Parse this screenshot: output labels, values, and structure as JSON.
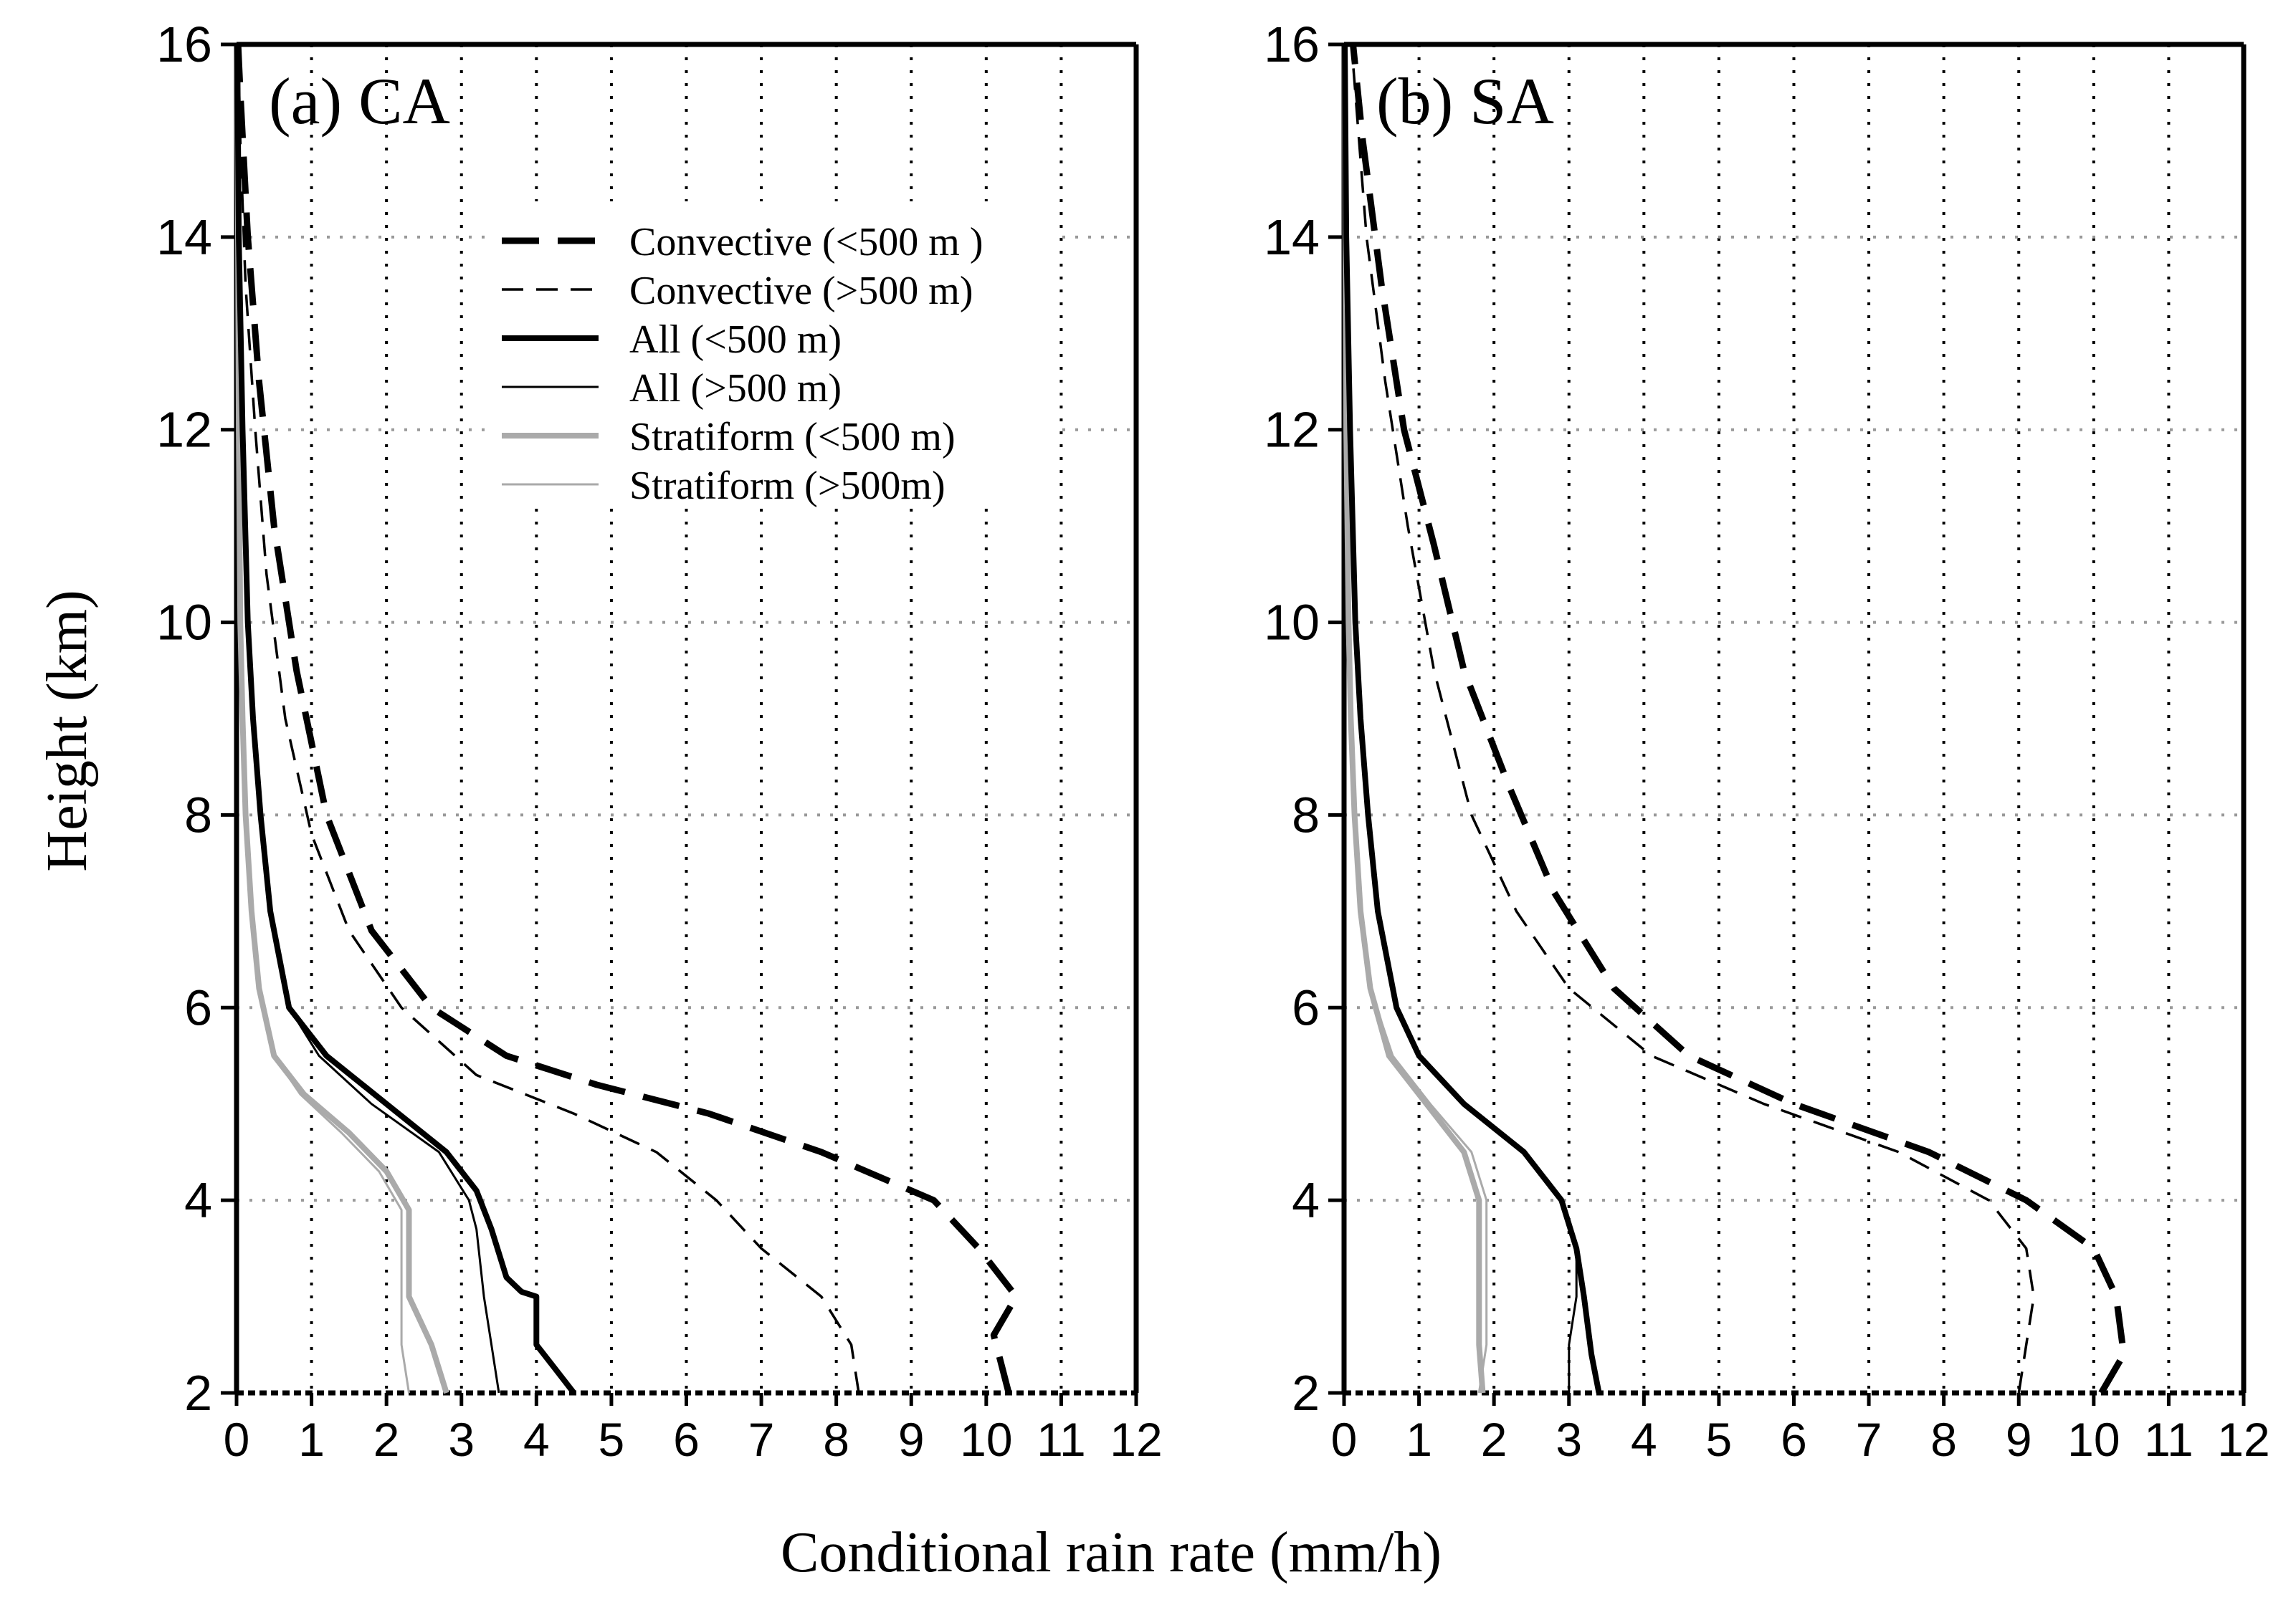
{
  "figure": {
    "shared_xlabel": "Conditional rain rate (mm/h)",
    "shared_ylabel": "Height (km)"
  },
  "chart_data": [
    {
      "type": "line",
      "title": "(a) CA",
      "xlabel": "Conditional rain rate (mm/h)",
      "ylabel": "Height (km)",
      "xlim": [
        0,
        12
      ],
      "ylim": [
        2,
        16
      ],
      "xticks": [
        0,
        1,
        2,
        3,
        4,
        5,
        6,
        7,
        8,
        9,
        10,
        11,
        12
      ],
      "yticks": [
        2,
        4,
        6,
        8,
        10,
        12,
        14,
        16
      ],
      "grid": true,
      "legend_position": "upper-center",
      "series": [
        {
          "name": "Convective (<500 m )",
          "style": "thick-dash",
          "color": "#000000",
          "points": [
            [
              10.3,
              2.0
            ],
            [
              10.2,
              2.3
            ],
            [
              10.1,
              2.6
            ],
            [
              10.4,
              3.0
            ],
            [
              10.2,
              3.2
            ],
            [
              9.9,
              3.5
            ],
            [
              9.3,
              4.0
            ],
            [
              7.8,
              4.5
            ],
            [
              6.3,
              4.9
            ],
            [
              4.8,
              5.2
            ],
            [
              3.6,
              5.5
            ],
            [
              2.6,
              6.0
            ],
            [
              1.8,
              6.8
            ],
            [
              1.2,
              8.0
            ],
            [
              0.8,
              9.5
            ],
            [
              0.5,
              11.0
            ],
            [
              0.3,
              12.5
            ],
            [
              0.15,
              14.0
            ],
            [
              0.05,
              15.5
            ],
            [
              0.02,
              16.0
            ]
          ]
        },
        {
          "name": "Convective (>500 m)",
          "style": "thin-dash",
          "color": "#000000",
          "points": [
            [
              8.3,
              2.0
            ],
            [
              8.2,
              2.5
            ],
            [
              7.8,
              3.0
            ],
            [
              7.0,
              3.5
            ],
            [
              6.4,
              4.0
            ],
            [
              5.6,
              4.5
            ],
            [
              4.5,
              4.9
            ],
            [
              3.2,
              5.3
            ],
            [
              2.2,
              6.0
            ],
            [
              1.5,
              6.8
            ],
            [
              1.0,
              7.8
            ],
            [
              0.65,
              9.0
            ],
            [
              0.4,
              10.5
            ],
            [
              0.25,
              12.0
            ],
            [
              0.12,
              13.5
            ],
            [
              0.05,
              15.0
            ],
            [
              0.02,
              16.0
            ]
          ]
        },
        {
          "name": "All (<500 m)",
          "style": "thick-solid",
          "color": "#000000",
          "points": [
            [
              4.5,
              2.0
            ],
            [
              4.2,
              2.3
            ],
            [
              4.0,
              2.5
            ],
            [
              4.0,
              3.0
            ],
            [
              3.8,
              3.05
            ],
            [
              3.6,
              3.2
            ],
            [
              3.4,
              3.7
            ],
            [
              3.2,
              4.1
            ],
            [
              2.8,
              4.5
            ],
            [
              2.0,
              5.0
            ],
            [
              1.2,
              5.5
            ],
            [
              0.7,
              6.0
            ],
            [
              0.45,
              7.0
            ],
            [
              0.32,
              8.0
            ],
            [
              0.22,
              9.0
            ],
            [
              0.15,
              10.0
            ],
            [
              0.08,
              12.0
            ],
            [
              0.03,
              14.0
            ],
            [
              0.01,
              16.0
            ]
          ]
        },
        {
          "name": "All (>500 m)",
          "style": "thin-solid",
          "color": "#000000",
          "points": [
            [
              3.5,
              2.0
            ],
            [
              3.4,
              2.5
            ],
            [
              3.3,
              3.0
            ],
            [
              3.2,
              3.7
            ],
            [
              3.1,
              4.0
            ],
            [
              2.7,
              4.5
            ],
            [
              1.8,
              5.0
            ],
            [
              1.1,
              5.5
            ],
            [
              0.7,
              6.0
            ],
            [
              0.45,
              7.0
            ],
            [
              0.32,
              8.0
            ],
            [
              0.22,
              9.0
            ],
            [
              0.15,
              10.0
            ],
            [
              0.08,
              12.0
            ],
            [
              0.03,
              14.0
            ],
            [
              0.01,
              16.0
            ]
          ]
        },
        {
          "name": "Stratiform (<500 m)",
          "style": "thick-solid",
          "color": "#aaaaaa",
          "points": [
            [
              2.8,
              2.0
            ],
            [
              2.6,
              2.5
            ],
            [
              2.3,
              3.0
            ],
            [
              2.3,
              3.5
            ],
            [
              2.3,
              3.9
            ],
            [
              2.0,
              4.3
            ],
            [
              1.5,
              4.7
            ],
            [
              0.9,
              5.1
            ],
            [
              0.5,
              5.5
            ],
            [
              0.3,
              6.2
            ],
            [
              0.2,
              7.0
            ],
            [
              0.12,
              8.0
            ],
            [
              0.08,
              9.0
            ],
            [
              0.05,
              10.0
            ],
            [
              0.03,
              12.0
            ],
            [
              0.01,
              16.0
            ]
          ]
        },
        {
          "name": "Stratiform (>500m)",
          "style": "thin-solid",
          "color": "#aaaaaa",
          "points": [
            [
              2.3,
              2.0
            ],
            [
              2.2,
              2.5
            ],
            [
              2.2,
              3.0
            ],
            [
              2.2,
              3.5
            ],
            [
              2.2,
              3.9
            ],
            [
              1.9,
              4.3
            ],
            [
              1.4,
              4.7
            ],
            [
              0.85,
              5.1
            ],
            [
              0.5,
              5.5
            ],
            [
              0.3,
              6.2
            ],
            [
              0.2,
              7.0
            ],
            [
              0.12,
              8.0
            ],
            [
              0.08,
              9.0
            ],
            [
              0.05,
              10.0
            ],
            [
              0.03,
              12.0
            ],
            [
              0.01,
              16.0
            ]
          ]
        }
      ]
    },
    {
      "type": "line",
      "title": "(b) SA",
      "xlabel": "Conditional rain rate (mm/h)",
      "ylabel": "Height (km)",
      "xlim": [
        0,
        12
      ],
      "ylim": [
        2,
        16
      ],
      "xticks": [
        0,
        1,
        2,
        3,
        4,
        5,
        6,
        7,
        8,
        9,
        10,
        11,
        12
      ],
      "yticks": [
        2,
        4,
        6,
        8,
        10,
        12,
        14,
        16
      ],
      "grid": true,
      "series": [
        {
          "name": "Convective (<500 m )",
          "style": "thick-dash",
          "color": "#000000",
          "points": [
            [
              10.1,
              2.0
            ],
            [
              10.4,
              2.4
            ],
            [
              10.3,
              3.0
            ],
            [
              10.0,
              3.5
            ],
            [
              9.1,
              4.0
            ],
            [
              7.8,
              4.5
            ],
            [
              6.0,
              5.0
            ],
            [
              4.6,
              5.5
            ],
            [
              3.6,
              6.2
            ],
            [
              2.8,
              7.2
            ],
            [
              2.2,
              8.3
            ],
            [
              1.6,
              9.5
            ],
            [
              1.2,
              10.8
            ],
            [
              0.8,
              12.0
            ],
            [
              0.5,
              13.5
            ],
            [
              0.25,
              15.0
            ],
            [
              0.12,
              16.0
            ]
          ]
        },
        {
          "name": "Convective (>500 m)",
          "style": "thin-dash",
          "color": "#000000",
          "points": [
            [
              9.0,
              2.0
            ],
            [
              9.1,
              2.5
            ],
            [
              9.2,
              3.0
            ],
            [
              9.1,
              3.5
            ],
            [
              8.6,
              4.0
            ],
            [
              7.4,
              4.5
            ],
            [
              5.6,
              5.0
            ],
            [
              4.1,
              5.5
            ],
            [
              3.0,
              6.2
            ],
            [
              2.3,
              7.0
            ],
            [
              1.7,
              8.0
            ],
            [
              1.2,
              9.5
            ],
            [
              0.85,
              11.0
            ],
            [
              0.55,
              12.5
            ],
            [
              0.3,
              14.0
            ],
            [
              0.15,
              15.5
            ],
            [
              0.1,
              16.0
            ]
          ]
        },
        {
          "name": "All (<500 m)",
          "style": "thick-solid",
          "color": "#000000",
          "points": [
            [
              3.4,
              2.0
            ],
            [
              3.3,
              2.4
            ],
            [
              3.2,
              3.0
            ],
            [
              3.1,
              3.5
            ],
            [
              2.9,
              4.0
            ],
            [
              2.4,
              4.5
            ],
            [
              1.6,
              5.0
            ],
            [
              1.0,
              5.5
            ],
            [
              0.7,
              6.0
            ],
            [
              0.45,
              7.0
            ],
            [
              0.32,
              8.0
            ],
            [
              0.22,
              9.0
            ],
            [
              0.15,
              10.0
            ],
            [
              0.08,
              12.0
            ],
            [
              0.03,
              14.0
            ],
            [
              0.01,
              16.0
            ]
          ]
        },
        {
          "name": "All (>500 m)",
          "style": "thin-solid",
          "color": "#000000",
          "points": [
            [
              3.0,
              2.0
            ],
            [
              3.0,
              2.5
            ],
            [
              3.1,
              3.0
            ],
            [
              3.1,
              3.5
            ],
            [
              2.9,
              4.0
            ],
            [
              2.4,
              4.5
            ],
            [
              1.6,
              5.0
            ],
            [
              1.0,
              5.5
            ],
            [
              0.7,
              6.0
            ],
            [
              0.45,
              7.0
            ],
            [
              0.32,
              8.0
            ],
            [
              0.22,
              9.0
            ],
            [
              0.15,
              10.0
            ],
            [
              0.08,
              12.0
            ],
            [
              0.03,
              14.0
            ],
            [
              0.01,
              16.0
            ]
          ]
        },
        {
          "name": "Stratiform (<500 m)",
          "style": "thick-solid",
          "color": "#aaaaaa",
          "points": [
            [
              1.85,
              2.0
            ],
            [
              1.8,
              2.5
            ],
            [
              1.8,
              3.0
            ],
            [
              1.8,
              3.5
            ],
            [
              1.8,
              4.0
            ],
            [
              1.6,
              4.5
            ],
            [
              1.1,
              5.0
            ],
            [
              0.6,
              5.5
            ],
            [
              0.35,
              6.2
            ],
            [
              0.22,
              7.0
            ],
            [
              0.14,
              8.0
            ],
            [
              0.09,
              9.0
            ],
            [
              0.06,
              10.0
            ],
            [
              0.03,
              12.0
            ],
            [
              0.01,
              16.0
            ]
          ]
        },
        {
          "name": "Stratiform (>500m)",
          "style": "thin-solid",
          "color": "#aaaaaa",
          "points": [
            [
              1.8,
              2.0
            ],
            [
              1.9,
              2.5
            ],
            [
              1.9,
              3.0
            ],
            [
              1.9,
              3.5
            ],
            [
              1.9,
              4.0
            ],
            [
              1.7,
              4.5
            ],
            [
              1.15,
              5.0
            ],
            [
              0.65,
              5.5
            ],
            [
              0.35,
              6.2
            ],
            [
              0.22,
              7.0
            ],
            [
              0.14,
              8.0
            ],
            [
              0.09,
              9.0
            ],
            [
              0.06,
              10.0
            ],
            [
              0.03,
              12.0
            ],
            [
              0.01,
              16.0
            ]
          ]
        }
      ]
    }
  ]
}
